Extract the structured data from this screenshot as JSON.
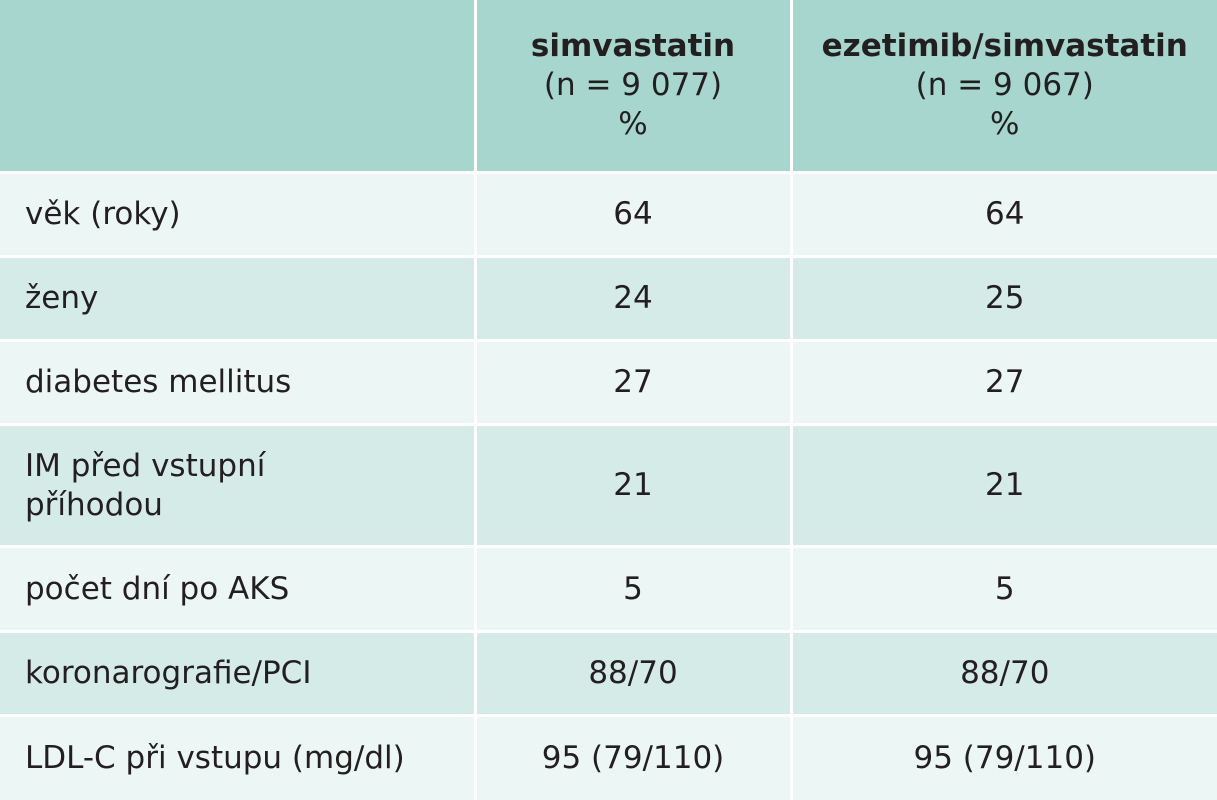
{
  "table": {
    "headers": [
      {
        "name": "",
        "n": "",
        "unit": ""
      },
      {
        "name": "simvastatin",
        "n": "(n = 9 077)",
        "unit": "%"
      },
      {
        "name": "ezetimib/simvastatin",
        "n": "(n = 9 067)",
        "unit": "%"
      }
    ],
    "rows": [
      {
        "label": "věk (roky)",
        "simvastatin": "64",
        "ezetimib_simvastatin": "64"
      },
      {
        "label": "ženy",
        "simvastatin": "24",
        "ezetimib_simvastatin": "25"
      },
      {
        "label": "diabetes mellitus",
        "simvastatin": "27",
        "ezetimib_simvastatin": "27"
      },
      {
        "label_line1": "IM před vstupní",
        "label_line2": "příhodou",
        "simvastatin": "21",
        "ezetimib_simvastatin": "21"
      },
      {
        "label": "počet dní po AKS",
        "simvastatin": "5",
        "ezetimib_simvastatin": "5"
      },
      {
        "label": "koronarografie/PCI",
        "simvastatin": "88/70",
        "ezetimib_simvastatin": "88/70"
      },
      {
        "label": "LDL-C při vstupu (mg/dl)",
        "simvastatin": "95 (79/110)",
        "ezetimib_simvastatin": "95 (79/110)"
      }
    ]
  },
  "colors": {
    "header_bg": "#a6d6ce",
    "row_light": "#ecf7f5",
    "row_dark": "#d5ebe7",
    "text": "#231f20"
  }
}
